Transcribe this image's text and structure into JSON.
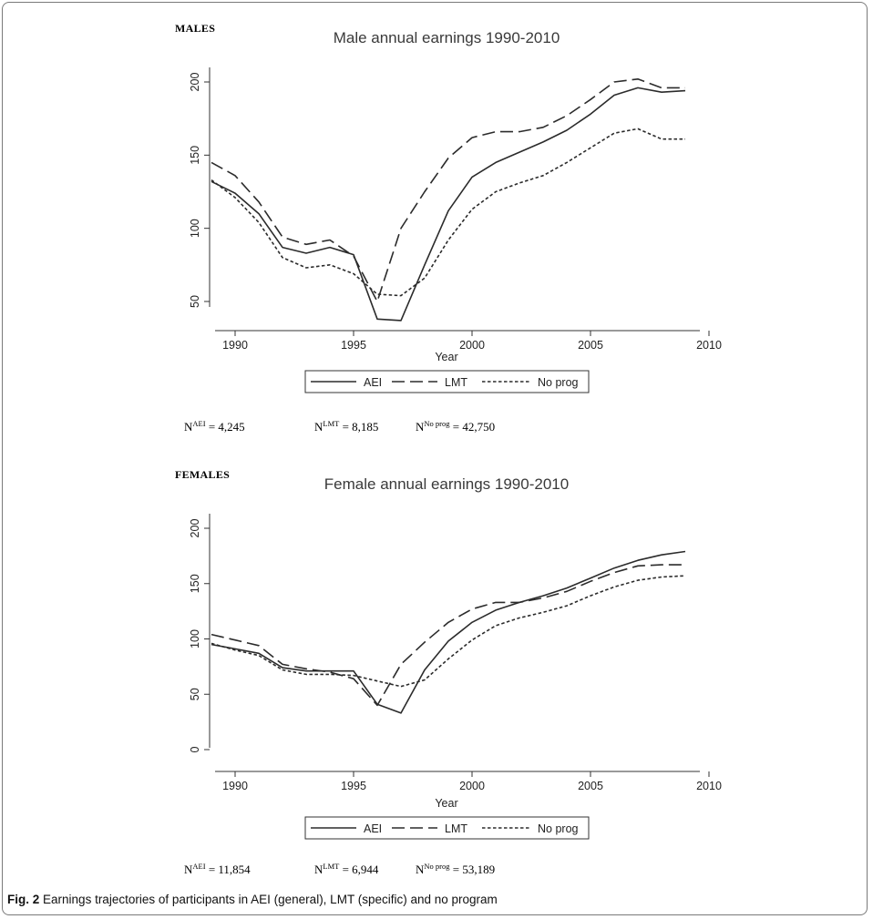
{
  "figure_label": "Fig. 2",
  "caption_text": "Earnings trajectories of participants in AEI (general), LMT (specific) and no program",
  "panels": [
    {
      "section_label": "MALES",
      "n_counts": [
        {
          "base": "N",
          "sup": "AEI",
          "value": "= 4,245"
        },
        {
          "base": "N",
          "sup": "LMT",
          "value": "= 8,185"
        },
        {
          "base": "N",
          "sup": "No prog",
          "value": "= 42,750"
        }
      ]
    },
    {
      "section_label": "FEMALES",
      "n_counts": [
        {
          "base": "N",
          "sup": "AEI",
          "value": "= 11,854"
        },
        {
          "base": "N",
          "sup": "LMT",
          "value": "= 6,944"
        },
        {
          "base": "N",
          "sup": "No prog",
          "value": "= 53,189"
        }
      ]
    }
  ],
  "chart_data": [
    {
      "type": "line",
      "title": "Male annual earnings 1990-2010",
      "xlabel": "Year",
      "ylabel": "",
      "xlim": [
        1989,
        2010
      ],
      "ylim": [
        37,
        200
      ],
      "xticks": [
        1990,
        1995,
        2000,
        2005,
        2010
      ],
      "yticks": [
        50,
        100,
        150,
        200
      ],
      "grid": false,
      "legend_position": "bottom",
      "x": [
        1989,
        1990,
        1991,
        1992,
        1993,
        1994,
        1995,
        1996,
        1997,
        1998,
        1999,
        2000,
        2001,
        2002,
        2003,
        2004,
        2005,
        2006,
        2007,
        2008,
        2009
      ],
      "series": [
        {
          "name": "AEI",
          "style": "solid",
          "values": [
            132,
            124,
            110,
            87,
            83,
            87,
            82,
            38,
            37,
            75,
            112,
            135,
            145,
            152,
            159,
            167,
            178,
            191,
            196,
            193,
            194
          ]
        },
        {
          "name": "LMT",
          "style": "long-dash",
          "values": [
            145,
            136,
            118,
            94,
            89,
            92,
            81,
            50,
            100,
            125,
            148,
            162,
            166,
            166,
            169,
            177,
            188,
            200,
            202,
            196,
            196
          ]
        },
        {
          "name": "No prog",
          "style": "short-dash",
          "values": [
            133,
            121,
            104,
            80,
            73,
            75,
            69,
            55,
            54,
            66,
            92,
            113,
            125,
            131,
            136,
            145,
            155,
            165,
            168,
            161,
            161
          ]
        }
      ]
    },
    {
      "type": "line",
      "title": "Female annual earnings 1990-2010",
      "xlabel": "Year",
      "ylabel": "",
      "xlim": [
        1989,
        2010
      ],
      "ylim": [
        0,
        200
      ],
      "xticks": [
        1990,
        1995,
        2000,
        2005,
        2010
      ],
      "yticks": [
        0,
        50,
        100,
        150,
        200
      ],
      "grid": false,
      "legend_position": "bottom",
      "x": [
        1989,
        1990,
        1991,
        1992,
        1993,
        1994,
        1995,
        1996,
        1997,
        1998,
        1999,
        2000,
        2001,
        2002,
        2003,
        2004,
        2005,
        2006,
        2007,
        2008,
        2009
      ],
      "series": [
        {
          "name": "AEI",
          "style": "solid",
          "values": [
            95,
            91,
            87,
            74,
            71,
            71,
            71,
            41,
            33,
            72,
            98,
            115,
            126,
            133,
            139,
            146,
            155,
            164,
            171,
            176,
            179
          ]
        },
        {
          "name": "LMT",
          "style": "long-dash",
          "values": [
            104,
            99,
            94,
            77,
            73,
            70,
            64,
            40,
            77,
            97,
            115,
            127,
            133,
            133,
            137,
            143,
            152,
            160,
            166,
            167,
            167
          ]
        },
        {
          "name": "No prog",
          "style": "short-dash",
          "values": [
            96,
            90,
            85,
            72,
            68,
            68,
            67,
            62,
            57,
            63,
            82,
            99,
            112,
            119,
            124,
            130,
            139,
            147,
            153,
            156,
            157
          ]
        }
      ]
    }
  ]
}
